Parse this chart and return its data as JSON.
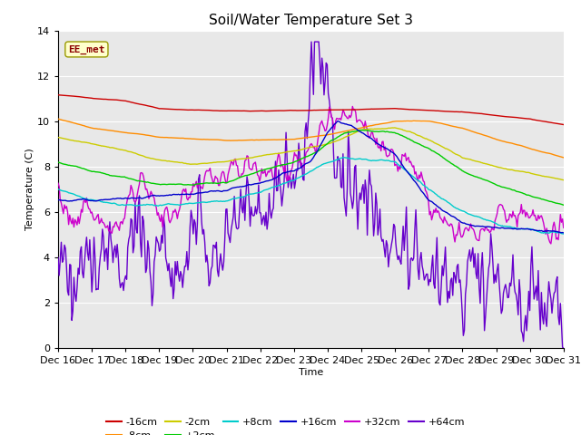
{
  "title": "Soil/Water Temperature Set 3",
  "xlabel": "Time",
  "ylabel": "Temperature (C)",
  "ylim": [
    0,
    14
  ],
  "x_tick_labels": [
    "Dec 16",
    "Dec 17",
    "Dec 18",
    "Dec 19",
    "Dec 20",
    "Dec 21",
    "Dec 22",
    "Dec 23",
    "Dec 24",
    "Dec 25",
    "Dec 26",
    "Dec 27",
    "Dec 28",
    "Dec 29",
    "Dec 30",
    "Dec 31"
  ],
  "watermark_text": "EE_met",
  "series_colors": {
    "-16cm": "#cc0000",
    "-8cm": "#ff8c00",
    "-2cm": "#cccc00",
    "+2cm": "#00cc00",
    "+8cm": "#00cccc",
    "+16cm": "#0000cc",
    "+32cm": "#cc00cc",
    "+64cm": "#6600cc"
  },
  "fig_bg_color": "#ffffff",
  "plot_bg_color": "#e8e8e8",
  "grid_color": "#ffffff",
  "title_fontsize": 11,
  "axis_fontsize": 8,
  "tick_fontsize": 8
}
